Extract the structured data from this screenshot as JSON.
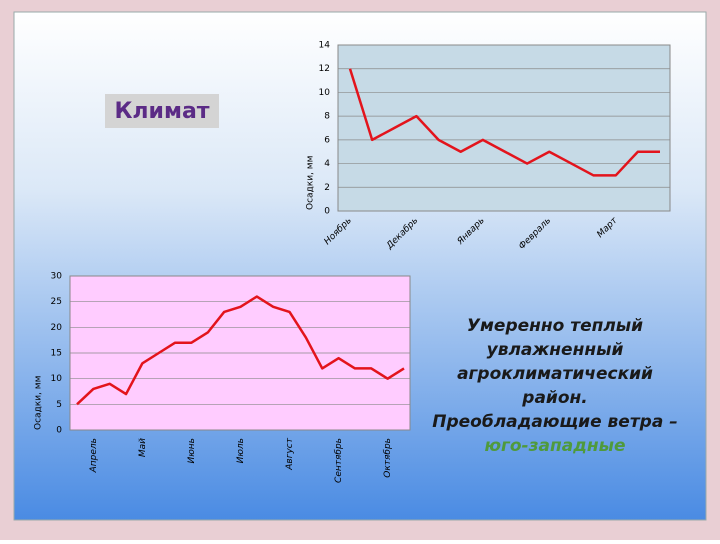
{
  "slide": {
    "title": "Климат",
    "text_lines": [
      "Умеренно теплый",
      "увлажненный",
      "агроклиматический",
      "район.",
      "Преобладающие ветра –",
      "юго-западные"
    ]
  },
  "chart_data": [
    {
      "type": "line",
      "y_label": "Осадки, мм",
      "color": "#e3141c",
      "plot_color": "#c6dae6",
      "grid": true,
      "categories": [
        "Ноябрь",
        null,
        null,
        "Декабрь",
        null,
        null,
        "Январь",
        null,
        null,
        "Февраль",
        null,
        null,
        "Март",
        null,
        null
      ],
      "values": [
        12,
        6,
        7,
        8,
        6,
        5,
        6,
        5,
        4,
        5,
        4,
        3,
        3,
        5,
        5
      ],
      "ylim": [
        0,
        14
      ],
      "yticks": [
        0,
        2,
        4,
        6,
        8,
        10,
        12,
        14
      ]
    },
    {
      "type": "line",
      "y_label": "Осадки, мм",
      "color": "#e3141c",
      "plot_color": "#ffccff",
      "grid": true,
      "categories": [
        null,
        "Апрель",
        null,
        null,
        "Май",
        null,
        null,
        "Июнь",
        null,
        null,
        "Июль",
        null,
        null,
        "Август",
        null,
        null,
        "Сентябрь",
        null,
        null,
        "Октябрь",
        null
      ],
      "values": [
        5,
        8,
        9,
        7,
        13,
        15,
        17,
        17,
        19,
        23,
        24,
        26,
        24,
        23,
        18,
        12,
        14,
        12,
        12,
        10,
        12
      ],
      "ylim": [
        0,
        30
      ],
      "yticks": [
        0,
        5,
        10,
        15,
        20,
        25,
        30
      ]
    }
  ]
}
